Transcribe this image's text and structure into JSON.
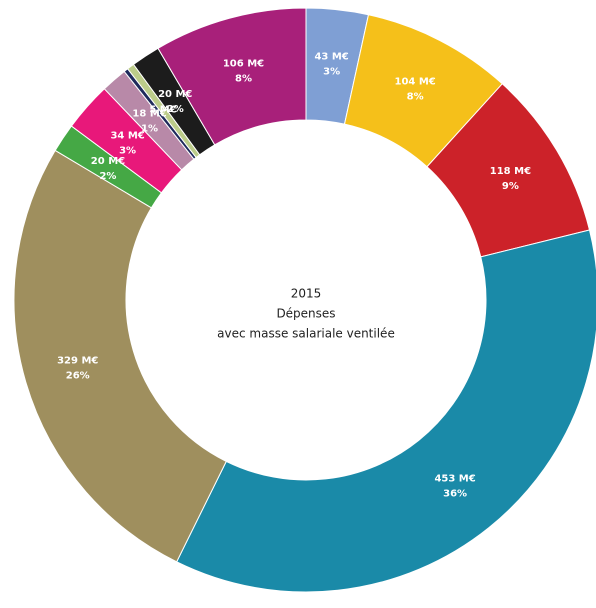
{
  "chart_data": {
    "type": "donut",
    "center_text": [
      "2015",
      "Dépenses",
      "avec masse salariale ventilée"
    ],
    "values": [
      43,
      104,
      118,
      453,
      329,
      20,
      34,
      18,
      3,
      5,
      20,
      106
    ],
    "value_labels": [
      "43 M€",
      "104 M€",
      "118 M€",
      "453 M€",
      "329 M€",
      "20 M€",
      "34 M€",
      "18 M€",
      null,
      "5 M€",
      "20 M€",
      "106 M€"
    ],
    "percent_labels": [
      "3%",
      "8%",
      "9%",
      "36%",
      "26%",
      "2%",
      "3%",
      "1%",
      null,
      null,
      "2%",
      "8%"
    ],
    "colors": [
      "#7f9fd4",
      "#f5c01a",
      "#cc2229",
      "#1a8aa8",
      "#9f8f5e",
      "#45a845",
      "#e8187a",
      "#b889a8",
      "#1f2a5c",
      "#bccc8a",
      "#1c1c1c",
      "#a8207a"
    ]
  }
}
